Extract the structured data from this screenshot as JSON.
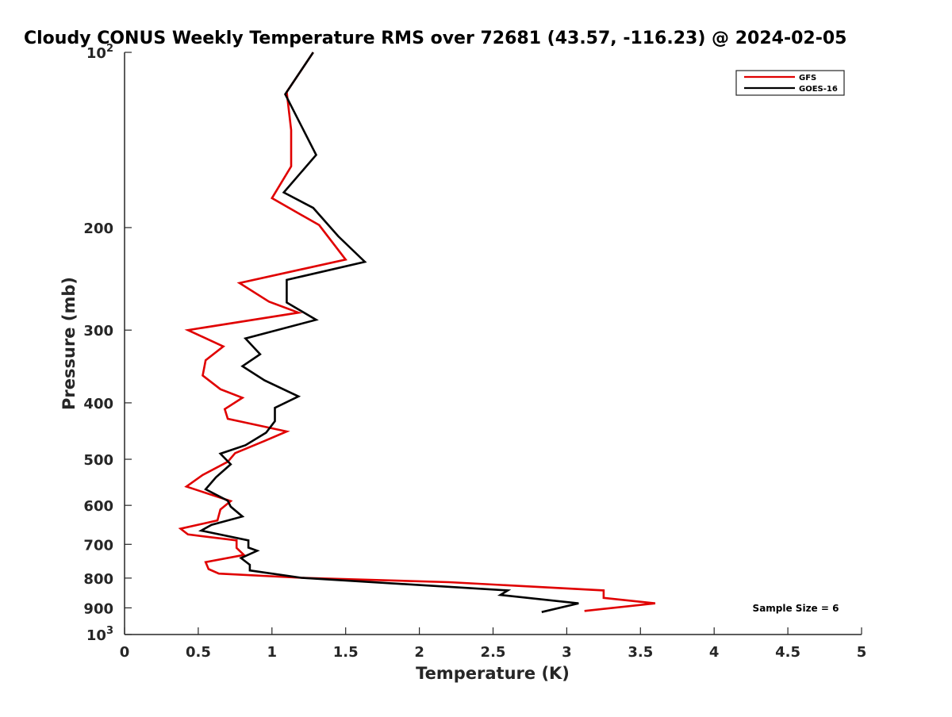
{
  "chart_data": {
    "type": "line",
    "title": "Cloudy CONUS Weekly Temperature RMS over 72681 (43.57, -116.23) @ 2024-02-05",
    "xlabel": "Temperature (K)",
    "ylabel": "Pressure (mb)",
    "xlim": [
      0,
      5
    ],
    "ylim": [
      100,
      1000
    ],
    "yscale": "log",
    "y_reversed": true,
    "grid": false,
    "legend_position": "top-right",
    "x_ticks": [
      "0",
      "0.5",
      "1",
      "1.5",
      "2",
      "2.5",
      "3",
      "3.5",
      "4",
      "4.5",
      "5"
    ],
    "y_ticks": [
      {
        "value": 100,
        "base": "10",
        "exp": "2"
      },
      {
        "value": 200,
        "base": "200",
        "exp": ""
      },
      {
        "value": 300,
        "base": "300",
        "exp": ""
      },
      {
        "value": 400,
        "base": "400",
        "exp": ""
      },
      {
        "value": 500,
        "base": "500",
        "exp": ""
      },
      {
        "value": 600,
        "base": "600",
        "exp": ""
      },
      {
        "value": 700,
        "base": "700",
        "exp": ""
      },
      {
        "value": 800,
        "base": "800",
        "exp": ""
      },
      {
        "value": 900,
        "base": "900",
        "exp": ""
      },
      {
        "value": 1000,
        "base": "10",
        "exp": "3"
      }
    ],
    "annotation": "Sample Size = 6",
    "series": [
      {
        "name": "GFS",
        "color": "#e00000",
        "points": [
          [
            1.28,
            100
          ],
          [
            1.1,
            117
          ],
          [
            1.13,
            136
          ],
          [
            1.13,
            157
          ],
          [
            1.0,
            178
          ],
          [
            1.32,
            198
          ],
          [
            1.5,
            227
          ],
          [
            0.78,
            249
          ],
          [
            0.98,
            268
          ],
          [
            1.18,
            280
          ],
          [
            0.43,
            300
          ],
          [
            0.67,
            320
          ],
          [
            0.55,
            338
          ],
          [
            0.53,
            359
          ],
          [
            0.65,
            379
          ],
          [
            0.8,
            392
          ],
          [
            0.68,
            410
          ],
          [
            0.7,
            426
          ],
          [
            1.1,
            448
          ],
          [
            0.95,
            465
          ],
          [
            0.75,
            488
          ],
          [
            0.7,
            505
          ],
          [
            0.53,
            532
          ],
          [
            0.42,
            557
          ],
          [
            0.72,
            590
          ],
          [
            0.65,
            610
          ],
          [
            0.63,
            637
          ],
          [
            0.38,
            658
          ],
          [
            0.43,
            673
          ],
          [
            0.76,
            689
          ],
          [
            0.76,
            710
          ],
          [
            0.81,
            730
          ],
          [
            0.55,
            751
          ],
          [
            0.57,
            772
          ],
          [
            0.64,
            786
          ],
          [
            1.2,
            799
          ],
          [
            2.2,
            813
          ],
          [
            3.25,
            840
          ],
          [
            3.25,
            865
          ],
          [
            3.6,
            884
          ],
          [
            3.12,
            911
          ]
        ]
      },
      {
        "name": "GOES-16",
        "color": "#000000",
        "points": [
          [
            1.28,
            100
          ],
          [
            1.09,
            118
          ],
          [
            1.3,
            150
          ],
          [
            1.08,
            174
          ],
          [
            1.28,
            185
          ],
          [
            1.45,
            207
          ],
          [
            1.63,
            229
          ],
          [
            1.1,
            246
          ],
          [
            1.1,
            269
          ],
          [
            1.3,
            288
          ],
          [
            0.82,
            310
          ],
          [
            0.92,
            330
          ],
          [
            0.8,
            346
          ],
          [
            0.95,
            366
          ],
          [
            1.18,
            390
          ],
          [
            1.02,
            408
          ],
          [
            1.02,
            430
          ],
          [
            0.96,
            450
          ],
          [
            0.82,
            473
          ],
          [
            0.65,
            489
          ],
          [
            0.72,
            510
          ],
          [
            0.62,
            537
          ],
          [
            0.55,
            563
          ],
          [
            0.7,
            589
          ],
          [
            0.72,
            603
          ],
          [
            0.8,
            627
          ],
          [
            0.59,
            648
          ],
          [
            0.52,
            663
          ],
          [
            0.84,
            689
          ],
          [
            0.84,
            709
          ],
          [
            0.9,
            718
          ],
          [
            0.79,
            739
          ],
          [
            0.85,
            759
          ],
          [
            0.85,
            776
          ],
          [
            1.2,
            799
          ],
          [
            2.6,
            840
          ],
          [
            2.55,
            855
          ],
          [
            3.08,
            884
          ],
          [
            2.83,
            915
          ]
        ]
      }
    ]
  }
}
